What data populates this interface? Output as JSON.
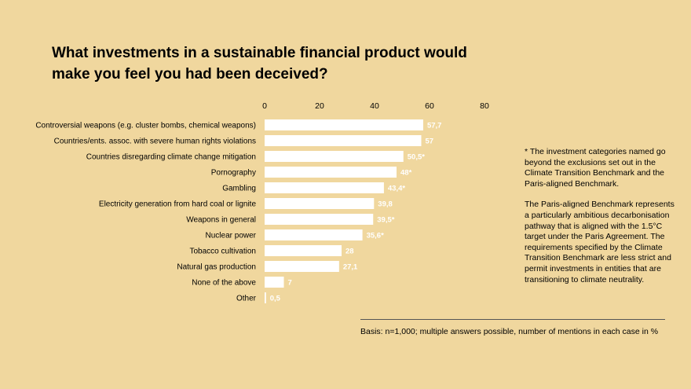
{
  "title": "What investments in a sustainable financial product would make you feel you had been deceived?",
  "chart_data": {
    "type": "bar",
    "orientation": "horizontal",
    "categories": [
      "Controversial weapons (e.g. cluster bombs, chemical weapons)",
      "Countries/ents. assoc. with severe human rights violations",
      "Countries disregarding climate change mitigation",
      "Pornography",
      "Gambling",
      "Electricity generation from hard coal or lignite",
      "Weapons in general",
      "Nuclear power",
      "Tobacco cultivation",
      "Natural gas production",
      "None of the above",
      "Other"
    ],
    "values": [
      57.7,
      57,
      50.5,
      48,
      43.4,
      39.8,
      39.5,
      35.6,
      28,
      27.1,
      7,
      0.5
    ],
    "value_labels": [
      "57,7",
      "57",
      "50,5*",
      "48*",
      "43,4*",
      "39,8",
      "39,5*",
      "35,6*",
      "28",
      "27,1",
      "7",
      "0,5"
    ],
    "xlim": [
      0,
      80
    ],
    "xticks": [
      "0",
      "20",
      "40",
      "60",
      "80"
    ],
    "bar_color": "#FFFFFF",
    "label_color": "#FFFFFF"
  },
  "notes": {
    "footnote": "* The investment categories named go beyond the exclusions set out in the Climate Transition Benchmark and the Paris-aligned Benchmark.",
    "paris": "The Paris-aligned Benchmark represents a particularly ambitious decarbonisation pathway that is aligned with the 1.5°C target under the Paris Agreement. The requirements specified by the Climate Transition Benchmark are less strict and permit investments in entities that are transitioning to climate neutrality."
  },
  "basis": "Basis: n=1,000; multiple answers possible, number of mentions in each case in %"
}
